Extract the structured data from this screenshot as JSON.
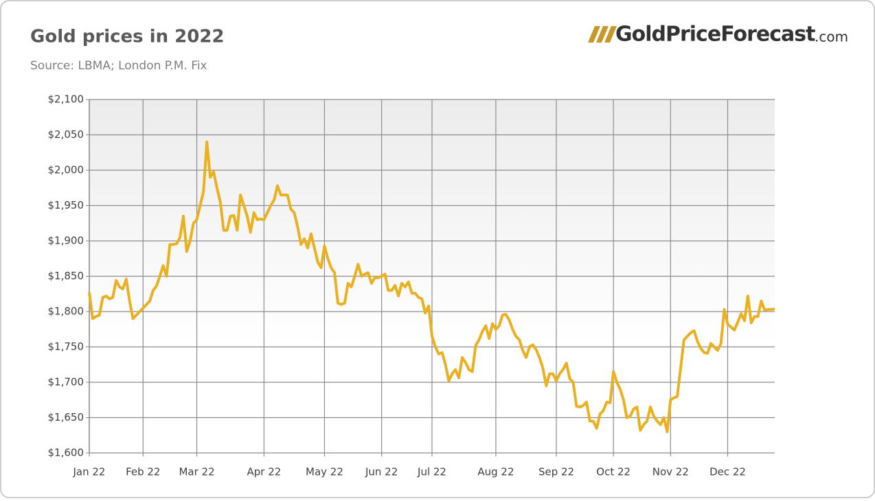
{
  "chart_data": {
    "type": "line",
    "title": "Gold prices in 2022",
    "subtitle": "Source: LBMA; London P.M. Fix",
    "logo": {
      "brand": "GoldPriceForecast",
      "suffix": ".com"
    },
    "categories": [
      "Jan 22",
      null,
      null,
      null,
      null,
      null,
      null,
      null,
      null,
      null,
      null,
      null,
      null,
      null,
      null,
      null,
      "Feb 22",
      null,
      null,
      null,
      null,
      null,
      null,
      null,
      null,
      null,
      null,
      null,
      null,
      null,
      null,
      null,
      "Mar 22",
      null,
      null,
      null,
      null,
      null,
      null,
      null,
      null,
      null,
      null,
      null,
      null,
      null,
      null,
      null,
      null,
      null,
      null,
      null,
      "Apr 22",
      null,
      null,
      null,
      null,
      null,
      null,
      null,
      null,
      null,
      null,
      null,
      null,
      null,
      null,
      null,
      null,
      null,
      "May 22",
      null,
      null,
      null,
      null,
      null,
      null,
      null,
      null,
      null,
      null,
      null,
      null,
      null,
      null,
      null,
      null,
      "Jun 22",
      null,
      null,
      null,
      null,
      null,
      null,
      null,
      null,
      null,
      null,
      null,
      null,
      null,
      null,
      "Jul 22",
      null,
      null,
      null,
      null,
      null,
      null,
      null,
      null,
      null,
      null,
      null,
      null,
      null,
      null,
      null,
      null,
      null,
      null,
      "Aug 22",
      null,
      null,
      null,
      null,
      null,
      null,
      null,
      null,
      null,
      null,
      null,
      null,
      null,
      null,
      null,
      null,
      null,
      "Sep 22",
      null,
      null,
      null,
      null,
      null,
      null,
      null,
      null,
      null,
      null,
      null,
      null,
      null,
      null,
      null,
      null,
      "Oct 22",
      null,
      null,
      null,
      null,
      null,
      null,
      null,
      null,
      null,
      null,
      null,
      null,
      null,
      null,
      null,
      null,
      "Nov 22",
      null,
      null,
      null,
      null,
      null,
      null,
      null,
      null,
      null,
      null,
      null,
      null,
      null,
      null,
      null,
      null,
      "Dec 22",
      null,
      null,
      null,
      null,
      null,
      null,
      null,
      null,
      null,
      null,
      null,
      null,
      null,
      null
    ],
    "series": [
      {
        "color": "#e9b121",
        "values": [
          1827,
          1790,
          1793,
          1795,
          1820,
          1822,
          1818,
          1820,
          1844,
          1835,
          1832,
          1846,
          1815,
          1790,
          1795,
          1800,
          1805,
          1810,
          1815,
          1830,
          1836,
          1850,
          1865,
          1850,
          1895,
          1895,
          1896,
          1905,
          1935,
          1885,
          1900,
          1925,
          1930,
          1950,
          1970,
          2040,
          1990,
          1998,
          1975,
          1955,
          1915,
          1915,
          1935,
          1936,
          1915,
          1965,
          1950,
          1935,
          1912,
          1940,
          1930,
          1931,
          1930,
          1940,
          1950,
          1958,
          1978,
          1965,
          1965,
          1965,
          1945,
          1940,
          1920,
          1895,
          1903,
          1890,
          1910,
          1890,
          1870,
          1862,
          1893,
          1875,
          1862,
          1855,
          1812,
          1810,
          1812,
          1840,
          1835,
          1850,
          1867,
          1850,
          1853,
          1855,
          1840,
          1848,
          1848,
          1850,
          1853,
          1830,
          1830,
          1837,
          1822,
          1840,
          1835,
          1842,
          1826,
          1826,
          1820,
          1818,
          1798,
          1808,
          1765,
          1750,
          1740,
          1742,
          1725,
          1702,
          1712,
          1718,
          1706,
          1735,
          1728,
          1718,
          1715,
          1752,
          1760,
          1772,
          1780,
          1762,
          1783,
          1775,
          1780,
          1795,
          1796,
          1788,
          1775,
          1765,
          1760,
          1745,
          1735,
          1750,
          1753,
          1746,
          1735,
          1720,
          1695,
          1712,
          1712,
          1702,
          1712,
          1718,
          1727,
          1705,
          1700,
          1666,
          1665,
          1667,
          1672,
          1645,
          1645,
          1635,
          1655,
          1660,
          1672,
          1671,
          1715,
          1700,
          1690,
          1675,
          1650,
          1652,
          1662,
          1665,
          1632,
          1640,
          1645,
          1665,
          1652,
          1645,
          1640,
          1650,
          1630,
          1675,
          1678,
          1680,
          1720,
          1760,
          1765,
          1770,
          1773,
          1758,
          1748,
          1742,
          1741,
          1755,
          1750,
          1745,
          1755,
          1803,
          1782,
          1778,
          1774,
          1785,
          1797,
          1787,
          1822,
          1784,
          1793,
          1793,
          1815,
          1802,
          1803,
          1803,
          1804
        ]
      }
    ],
    "ylim": [
      1600,
      2100
    ],
    "yticks": [
      {
        "value": 1600,
        "label": "$1,600"
      },
      {
        "value": 1650,
        "label": "$1,650"
      },
      {
        "value": 1700,
        "label": "$1,700"
      },
      {
        "value": 1750,
        "label": "$1,750"
      },
      {
        "value": 1800,
        "label": "$1,800"
      },
      {
        "value": 1850,
        "label": "$1,850"
      },
      {
        "value": 1900,
        "label": "$1,900"
      },
      {
        "value": 1950,
        "label": "$1,950"
      },
      {
        "value": 2000,
        "label": "$2,000"
      },
      {
        "value": 2050,
        "label": "$2,050"
      },
      {
        "value": 2100,
        "label": "$2,100"
      }
    ],
    "grid": true
  }
}
